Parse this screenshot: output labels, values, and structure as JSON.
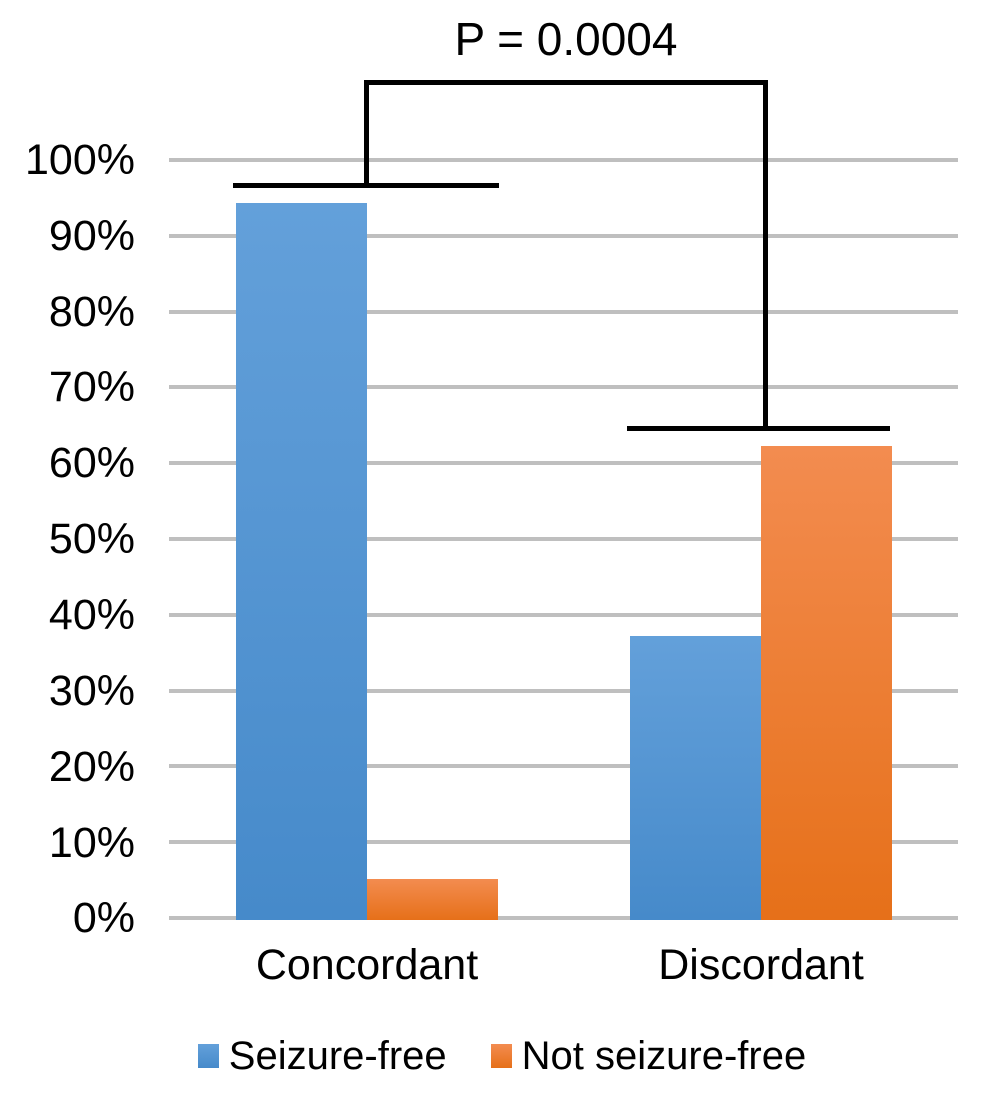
{
  "chart_data": {
    "type": "bar",
    "title": "",
    "categories": [
      "Concordant",
      "Discordant"
    ],
    "series": [
      {
        "name": "Seizure-free",
        "color": "#4E95D2",
        "gradient": [
          "#63A0DA",
          "#468ACA"
        ],
        "values": [
          94.6,
          37.5
        ]
      },
      {
        "name": "Not seizure-free",
        "color": "#ED7D31",
        "gradient": [
          "#F38C50",
          "#E67019"
        ],
        "values": [
          5.4,
          62.5
        ]
      }
    ],
    "xlabel": "",
    "ylabel": "",
    "ylim": [
      0,
      100
    ],
    "yticks": [
      "0%",
      "10%",
      "20%",
      "30%",
      "40%",
      "50%",
      "60%",
      "70%",
      "80%",
      "90%",
      "100%"
    ],
    "grid": "horizontal",
    "gridline_color": "#BFBFBF",
    "legend_position": "bottom",
    "annotations": [
      {
        "type": "significance-bracket",
        "text": "P = 0.0004",
        "between": [
          "Concordant",
          "Discordant"
        ],
        "color": "#000000"
      }
    ]
  },
  "colors": {
    "background": "#FFFFFF",
    "text": "#000000",
    "gridline": "#BFBFBF",
    "bracket": "#000000"
  }
}
